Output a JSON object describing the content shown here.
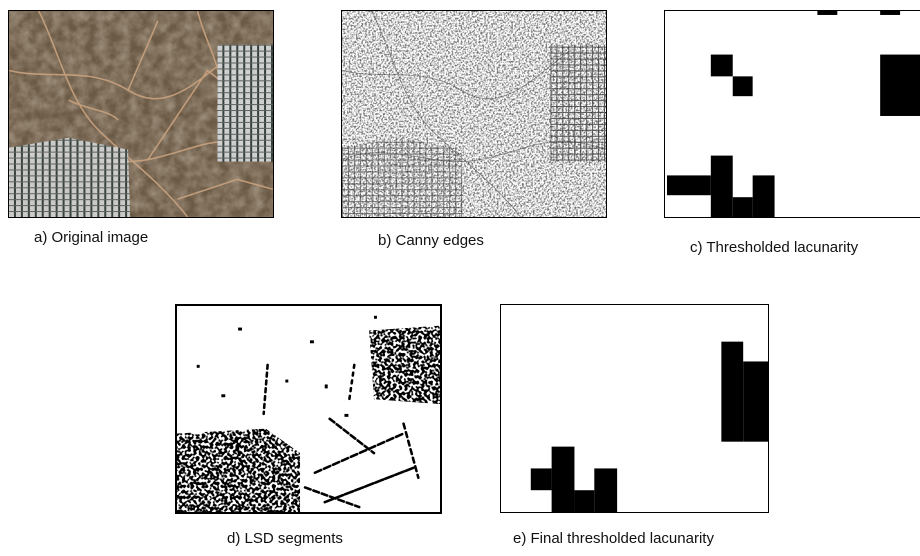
{
  "figure": {
    "panels": [
      {
        "id": "a",
        "caption": "a) Original image"
      },
      {
        "id": "b",
        "caption": "b) Canny edges"
      },
      {
        "id": "c",
        "caption": "c) Thresholded lacunarity"
      },
      {
        "id": "d",
        "caption": "d) LSD segments"
      },
      {
        "id": "e",
        "caption": "e) Final thresholded lacunarity"
      }
    ]
  },
  "colors": {
    "terrain": "#6b5a45",
    "roads": "#c9a27f",
    "buildings": "#d8dcde",
    "ink": "#000000",
    "paper": "#ffffff"
  }
}
